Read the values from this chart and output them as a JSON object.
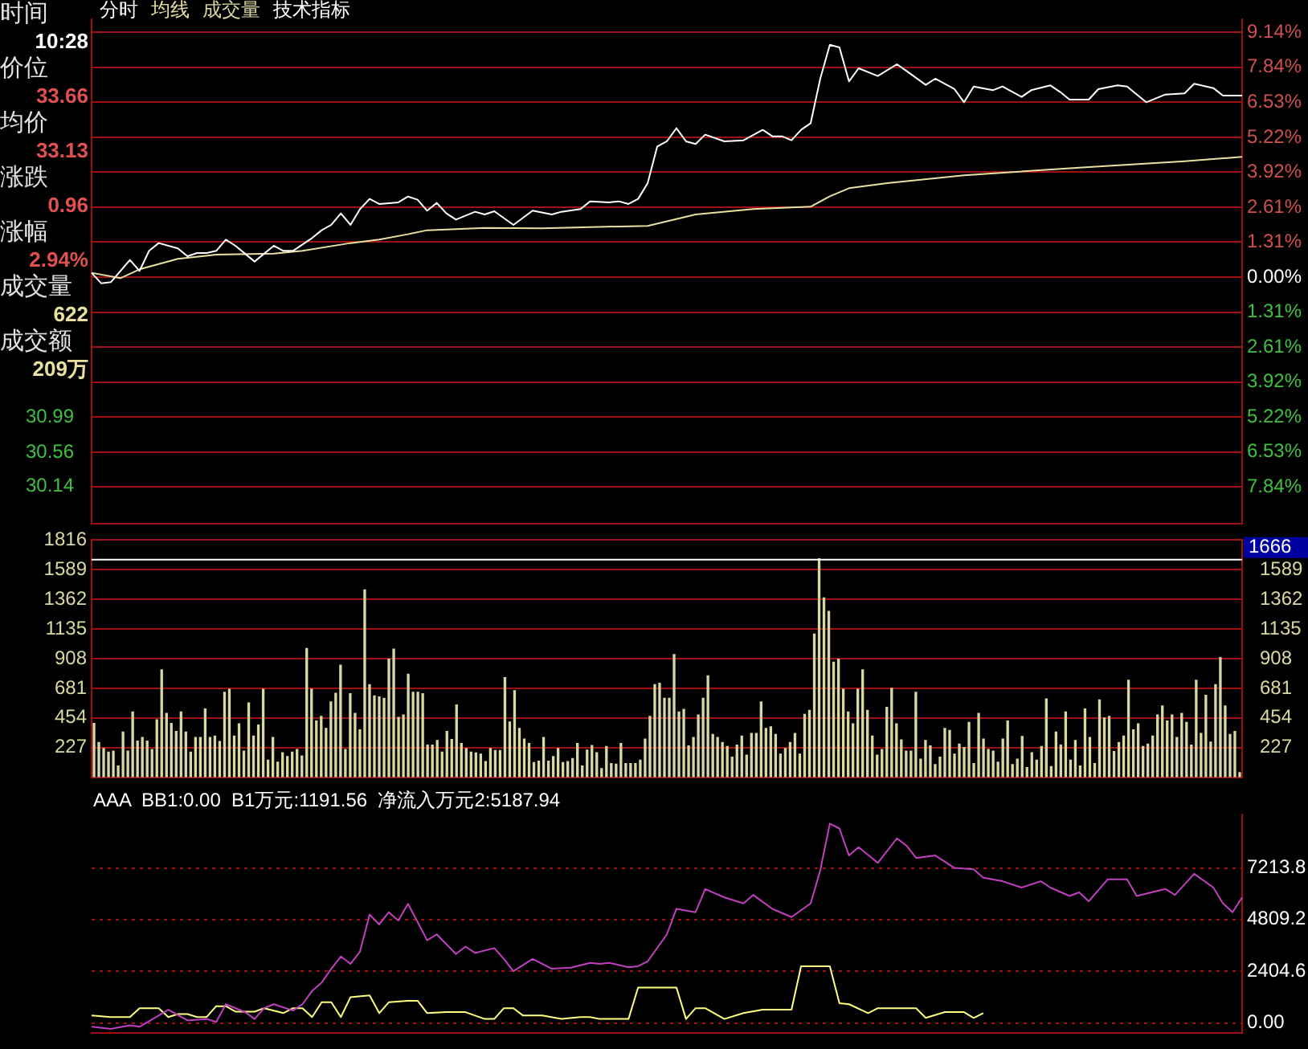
{
  "chart_data": [
    {
      "type": "other",
      "annotations": [
        "时间",
        "10:28",
        "价位",
        "33.66",
        "均价",
        "33.13",
        "涨跌",
        "0.96",
        "涨幅",
        "2.94%",
        "成交量",
        "622",
        "成交额",
        "209万"
      ]
    },
    {
      "type": "line",
      "annotations": [
        "分时",
        "均线",
        "成交量",
        "技术指标"
      ],
      "marker": "none",
      "grid": "y",
      "tick_labels": "y",
      "categories": [
        null,
        null,
        null,
        null,
        null,
        null,
        null,
        null,
        null,
        null,
        null,
        null,
        null,
        null,
        null,
        null,
        null,
        null,
        null,
        null,
        null,
        null,
        null,
        null,
        null,
        null,
        null,
        null,
        null,
        null,
        null,
        null,
        null,
        null,
        null,
        null,
        null,
        null,
        null,
        null,
        null,
        null,
        null,
        null,
        null,
        null,
        null,
        null,
        null,
        null,
        null,
        null,
        null,
        null,
        null,
        null,
        null,
        null,
        null,
        null,
        null,
        null,
        null,
        null,
        null,
        null,
        null,
        null,
        null,
        null,
        null,
        null,
        null,
        null,
        null,
        null,
        null,
        null,
        null,
        null,
        null,
        null,
        null,
        null,
        null,
        null,
        null,
        null,
        null,
        null,
        null,
        null,
        null,
        null,
        null,
        null,
        null,
        null,
        null,
        null,
        null,
        null,
        null,
        null,
        null,
        null,
        null,
        null,
        null,
        null,
        null,
        null,
        null,
        null,
        null,
        null,
        null,
        null,
        null,
        null,
        null
      ],
      "ylim": [
        -9.2,
        9.63
      ],
      "yticks": [
        {
          "value": 9.14,
          "label": "9.14%"
        },
        {
          "value": 7.84,
          "label": "7.84%"
        },
        {
          "value": 6.53,
          "label": "6.53%"
        },
        {
          "value": 5.22,
          "label": "5.22%"
        },
        {
          "value": 3.92,
          "label": "3.92%"
        },
        {
          "value": 2.61,
          "label": "2.61%"
        },
        {
          "value": 1.31,
          "label": "1.31%"
        },
        {
          "value": 0,
          "label": "0.00%"
        },
        {
          "value": -1.31,
          "label": "1.31%"
        },
        {
          "value": -2.61,
          "label": "2.61%"
        },
        {
          "value": -3.92,
          "label": "3.92%"
        },
        {
          "value": -5.22,
          "label": "5.22%"
        },
        {
          "value": -6.53,
          "label": "6.53%"
        },
        {
          "value": -7.84,
          "label": "7.84%"
        }
      ],
      "y2lim": [
        29.69,
        35.85
      ],
      "y2ticks": [
        30.99,
        30.56,
        30.14
      ],
      "series": [
        {
          "color": "#ffffff",
          "values": [
            0.16,
            -0.23,
            -0.19,
            null,
            0.64,
            0.23,
            0.98,
            1.27,
            null,
            1.07,
            0.78,
            0.9,
            0.9,
            0.98,
            1.4,
            1.17,
            null,
            0.58,
            null,
            1.17,
            0.98,
            0.98,
            null,
            1.46,
            1.75,
            1.95,
            2.38,
            1.95,
            2.54,
            2.92,
            2.73,
            null,
            2.79,
            3.01,
            2.89,
            2.48,
            2.77,
            2.38,
            2.15,
            null,
            2.44,
            2.34,
            2.46,
            null,
            1.95,
            null,
            2.48,
            null,
            2.34,
            2.44,
            null,
            2.54,
            2.83,
            null,
            2.79,
            2.83,
            2.73,
            2.92,
            3.51,
            4.88,
            5.07,
            5.56,
            5.07,
            4.97,
            5.32,
            null,
            5.07,
            null,
            5.11,
            null,
            5.5,
            5.26,
            5.26,
            5.11,
            5.5,
            5.75,
            7.41,
            8.68,
            8.58,
            7.31,
            7.8,
            null,
            7.51,
            null,
            7.95,
            7.7,
            null,
            7.18,
            7.41,
            null,
            7.02,
            6.53,
            7.12,
            null,
            6.98,
            7.12,
            null,
            6.73,
            6.98,
            null,
            7.16,
            6.92,
            6.63,
            null,
            6.63,
            7.02,
            null,
            7.16,
            7.12,
            null,
            6.53,
            null,
            6.82,
            null,
            6.86,
            7.22,
            null,
            7.06,
            6.78,
            null,
            6.78
          ]
        },
        {
          "color": "#e8e0a0",
          "values": [
            0.16,
            null,
            null,
            -0.04,
            null,
            0.29,
            null,
            null,
            null,
            0.68,
            null,
            null,
            null,
            0.84,
            null,
            null,
            null,
            null,
            null,
            0.88,
            null,
            null,
            0.98,
            null,
            null,
            null,
            null,
            1.27,
            null,
            null,
            1.4,
            null,
            null,
            1.6,
            null,
            1.75,
            null,
            null,
            null,
            null,
            null,
            1.84,
            null,
            null,
            null,
            null,
            null,
            1.82,
            null,
            null,
            null,
            null,
            1.87,
            null,
            null,
            null,
            null,
            null,
            1.91,
            null,
            null,
            null,
            null,
            2.34,
            null,
            null,
            null,
            null,
            null,
            2.54,
            null,
            null,
            null,
            null,
            null,
            2.63,
            null,
            3.02,
            null,
            3.32,
            null,
            null,
            null,
            3.51,
            null,
            null,
            null,
            null,
            null,
            null,
            null,
            3.8,
            null,
            null,
            null,
            null,
            null,
            null,
            null,
            null,
            null,
            null,
            null,
            4.09,
            null,
            null,
            null,
            null,
            null,
            null,
            null,
            null,
            null,
            null,
            4.33,
            null,
            null,
            null,
            null,
            null,
            4.49
          ]
        }
      ]
    },
    {
      "type": "bar",
      "color": "#d8d8a0",
      "grid": "y",
      "tick_labels": "y",
      "categories": [
        null,
        null,
        null,
        null,
        null,
        null,
        null,
        null,
        null,
        null,
        null,
        null,
        null,
        null,
        null,
        null,
        null,
        null,
        null,
        null,
        null,
        null,
        null,
        null,
        null,
        null,
        null,
        null,
        null,
        null,
        null,
        null,
        null,
        null,
        null,
        null,
        null,
        null,
        null,
        null,
        null,
        null,
        null,
        null,
        null,
        null,
        null,
        null,
        null,
        null,
        null,
        null,
        null,
        null,
        null,
        null,
        null,
        null,
        null,
        null,
        null,
        null,
        null,
        null,
        null,
        null,
        null,
        null,
        null,
        null,
        null,
        null,
        null,
        null,
        null,
        null,
        null,
        null,
        null,
        null,
        null,
        null,
        null,
        null,
        null,
        null,
        null,
        null,
        null,
        null,
        null,
        null,
        null,
        null,
        null,
        null,
        null,
        null,
        null,
        null,
        null,
        null,
        null,
        null,
        null,
        null,
        null,
        null,
        null,
        null,
        null,
        null,
        null,
        null,
        null,
        null,
        null,
        null,
        null,
        null,
        null,
        null,
        null,
        null,
        null,
        null,
        null,
        null,
        null,
        null,
        null,
        null,
        null,
        null,
        null,
        null,
        null,
        null,
        null,
        null,
        null,
        null,
        null,
        null,
        null,
        null,
        null,
        null,
        null,
        null,
        null,
        null,
        null,
        null,
        null,
        null,
        null,
        null,
        null,
        null,
        null,
        null,
        null,
        null,
        null,
        null,
        null,
        null,
        null,
        null,
        null,
        null,
        null,
        null,
        null,
        null,
        null,
        null,
        null,
        null,
        null,
        null,
        null,
        null,
        null,
        null,
        null,
        null,
        null,
        null,
        null,
        null,
        null,
        null,
        null,
        null,
        null,
        null,
        null,
        null,
        null,
        null,
        null,
        null,
        null,
        null,
        null,
        null,
        null,
        null,
        null,
        null,
        null,
        null,
        null,
        null,
        null,
        null,
        null,
        null,
        null,
        null,
        null,
        null,
        null,
        null,
        null,
        null,
        null,
        null,
        null,
        null,
        null,
        null,
        null,
        null,
        null,
        null
      ],
      "ylim": [
        0,
        1816
      ],
      "yticks": [
        227,
        454,
        681,
        908,
        1135,
        1362,
        1589,
        1816
      ],
      "y2lim": [
        0,
        1816
      ],
      "y2ticks": [
        227,
        454,
        681,
        908,
        1135,
        1362,
        1589
      ],
      "ref_lines": [
        {
          "axis": "y",
          "value": 1666,
          "label": "1666",
          "color": "#ffffff"
        }
      ],
      "values": [
        412,
        265,
        219,
        192,
        200,
        85,
        346,
        200,
        500,
        277,
        304,
        277,
        212,
        439,
        823,
        489,
        412,
        350,
        500,
        346,
        192,
        304,
        304,
        523,
        304,
        315,
        273,
        650,
        673,
        315,
        408,
        200,
        569,
        315,
        400,
        673,
        131,
        304,
        115,
        188,
        158,
        192,
        212,
        162,
        985,
        673,
        431,
        465,
        373,
        577,
        642,
        858,
        212,
        639,
        489,
        362,
        1435,
        708,
        622,
        615,
        604,
        904,
        981,
        458,
        477,
        789,
        650,
        650,
        639,
        246,
        246,
        281,
        192,
        350,
        289,
        554,
        258,
        219,
        192,
        185,
        177,
        119,
        219,
        204,
        204,
        762,
        423,
        662,
        373,
        292,
        258,
        112,
        123,
        304,
        123,
        158,
        219,
        112,
        119,
        142,
        258,
        85,
        208,
        242,
        188,
        65,
        235,
        104,
        100,
        258,
        104,
        104,
        104,
        131,
        292,
        465,
        708,
        719,
        604,
        604,
        939,
        500,
        519,
        239,
        304,
        477,
        604,
        777,
        327,
        304,
        265,
        235,
        154,
        246,
        315,
        169,
        335,
        335,
        577,
        373,
        385,
        327,
        177,
        219,
        265,
        335,
        177,
        481,
        512,
        1096,
        1673,
        1373,
        1270,
        881,
        904,
        673,
        500,
        408,
        673,
        823,
        512,
        315,
        169,
        212,
        535,
        681,
        408,
        285,
        200,
        200,
        650,
        138,
        281,
        239,
        96,
        154,
        373,
        358,
        177,
        254,
        227,
        419,
        104,
        489,
        292,
        212,
        200,
        115,
        292,
        431,
        96,
        138,
        312,
        73,
        188,
        131,
        235,
        600,
        81,
        346,
        246,
        500,
        131,
        281,
        85,
        523,
        304,
        104,
        592,
        454,
        465,
        196,
        265,
        315,
        742,
        362,
        408,
        235,
        254,
        315,
        477,
        546,
        431,
        477,
        304,
        489,
        419,
        246,
        742,
        335,
        627,
        269,
        708,
        916,
        546,
        327,
        350,
        35
      ]
    },
    {
      "type": "line",
      "annotations": [
        "AAA  BB1:0.00  B1万元:1191.56  净流入万元2:5187.94"
      ],
      "marker": "none",
      "grid": "y",
      "tick_labels": "y",
      "categories": [
        null,
        null,
        null,
        null,
        null,
        null,
        null,
        null,
        null,
        null,
        null,
        null,
        null,
        null,
        null,
        null,
        null,
        null,
        null,
        null,
        null,
        null,
        null,
        null,
        null,
        null,
        null,
        null,
        null,
        null,
        null,
        null,
        null,
        null,
        null,
        null,
        null,
        null,
        null,
        null,
        null,
        null,
        null,
        null,
        null,
        null,
        null,
        null,
        null,
        null,
        null,
        null,
        null,
        null,
        null,
        null,
        null,
        null,
        null,
        null,
        null,
        null,
        null,
        null,
        null,
        null,
        null,
        null,
        null,
        null,
        null,
        null,
        null,
        null,
        null,
        null,
        null,
        null,
        null,
        null,
        null,
        null,
        null,
        null,
        null,
        null,
        null,
        null,
        null,
        null,
        null,
        null,
        null,
        null,
        null,
        null,
        null,
        null,
        null,
        null,
        null,
        null,
        null,
        null,
        null,
        null,
        null,
        null,
        null,
        null,
        null,
        null,
        null,
        null,
        null,
        null,
        null,
        null,
        null,
        null,
        null
      ],
      "ylim": [
        -450,
        9700
      ],
      "yticks": [
        {
          "value": 0,
          "label": "0.00"
        },
        2404.6,
        4809.2,
        7213.8
      ],
      "series": [
        {
          "color": "#c040c0",
          "values": [
            -179,
            null,
            -275,
            null,
            -110,
            -179,
            null,
            344,
            618,
            null,
            117,
            null,
            185,
            48,
            872,
            null,
            508,
            185,
            687,
            872,
            null,
            577,
            872,
            1491,
            1882,
            2521,
            3092,
            2748,
            3325,
            5043,
            4582,
            5152,
            4768,
            5544,
            4699,
            3847,
            4122,
            null,
            3207,
            3552,
            3256,
            null,
            3483,
            2981,
            2405,
            null,
            2981,
            null,
            2521,
            null,
            2569,
            null,
            2796,
            2748,
            2796,
            null,
            2590,
            2638,
            2865,
            null,
            4122,
            5310,
            null,
            5152,
            6231,
            null,
            5840,
            null,
            5563,
            5956,
            null,
            5310,
            null,
            4926,
            null,
            5563,
            7103,
            9275,
            9046,
            7791,
            8175,
            null,
            7447,
            null,
            8588,
            8244,
            7674,
            null,
            7791,
            null,
            7213,
            null,
            7145,
            6760,
            null,
            6595,
            null,
            6300,
            null,
            6595,
            6300,
            null,
            5908,
            6073,
            5661,
            null,
            6684,
            null,
            6684,
            5908,
            null,
            null,
            6231,
            5956,
            null,
            6939,
            null,
            6300,
            5563,
            5152,
            5840
          ]
        },
        {
          "color": "#ffff80",
          "values": [
            344,
            null,
            275,
            null,
            275,
            687,
            null,
            687,
            275,
            412,
            412,
            275,
            275,
            782,
            782,
            527,
            null,
            527,
            687,
            null,
            458,
            687,
            687,
            275,
            962,
            962,
            275,
            1194,
            null,
            1283,
            458,
            962,
            null,
            1031,
            1031,
            458,
            null,
            504,
            null,
            504,
            344,
            185,
            185,
            687,
            687,
            344,
            null,
            344,
            null,
            185,
            null,
            275,
            275,
            185,
            null,
            null,
            185,
            1649,
            null,
            null,
            null,
            1649,
            185,
            687,
            687,
            null,
            185,
            null,
            458,
            null,
            618,
            null,
            null,
            618,
            2636,
            null,
            null,
            2636,
            918,
            872,
            null,
            458,
            687,
            null,
            687,
            null,
            687,
            233,
            null,
            504,
            null,
            504,
            233,
            458,
            null,
            null,
            null,
            null,
            null,
            null,
            null,
            null,
            null,
            null,
            null,
            null,
            null,
            null,
            null,
            null,
            null,
            null,
            null,
            null,
            null,
            null,
            null,
            null,
            null,
            null,
            null
          ]
        }
      ]
    }
  ]
}
